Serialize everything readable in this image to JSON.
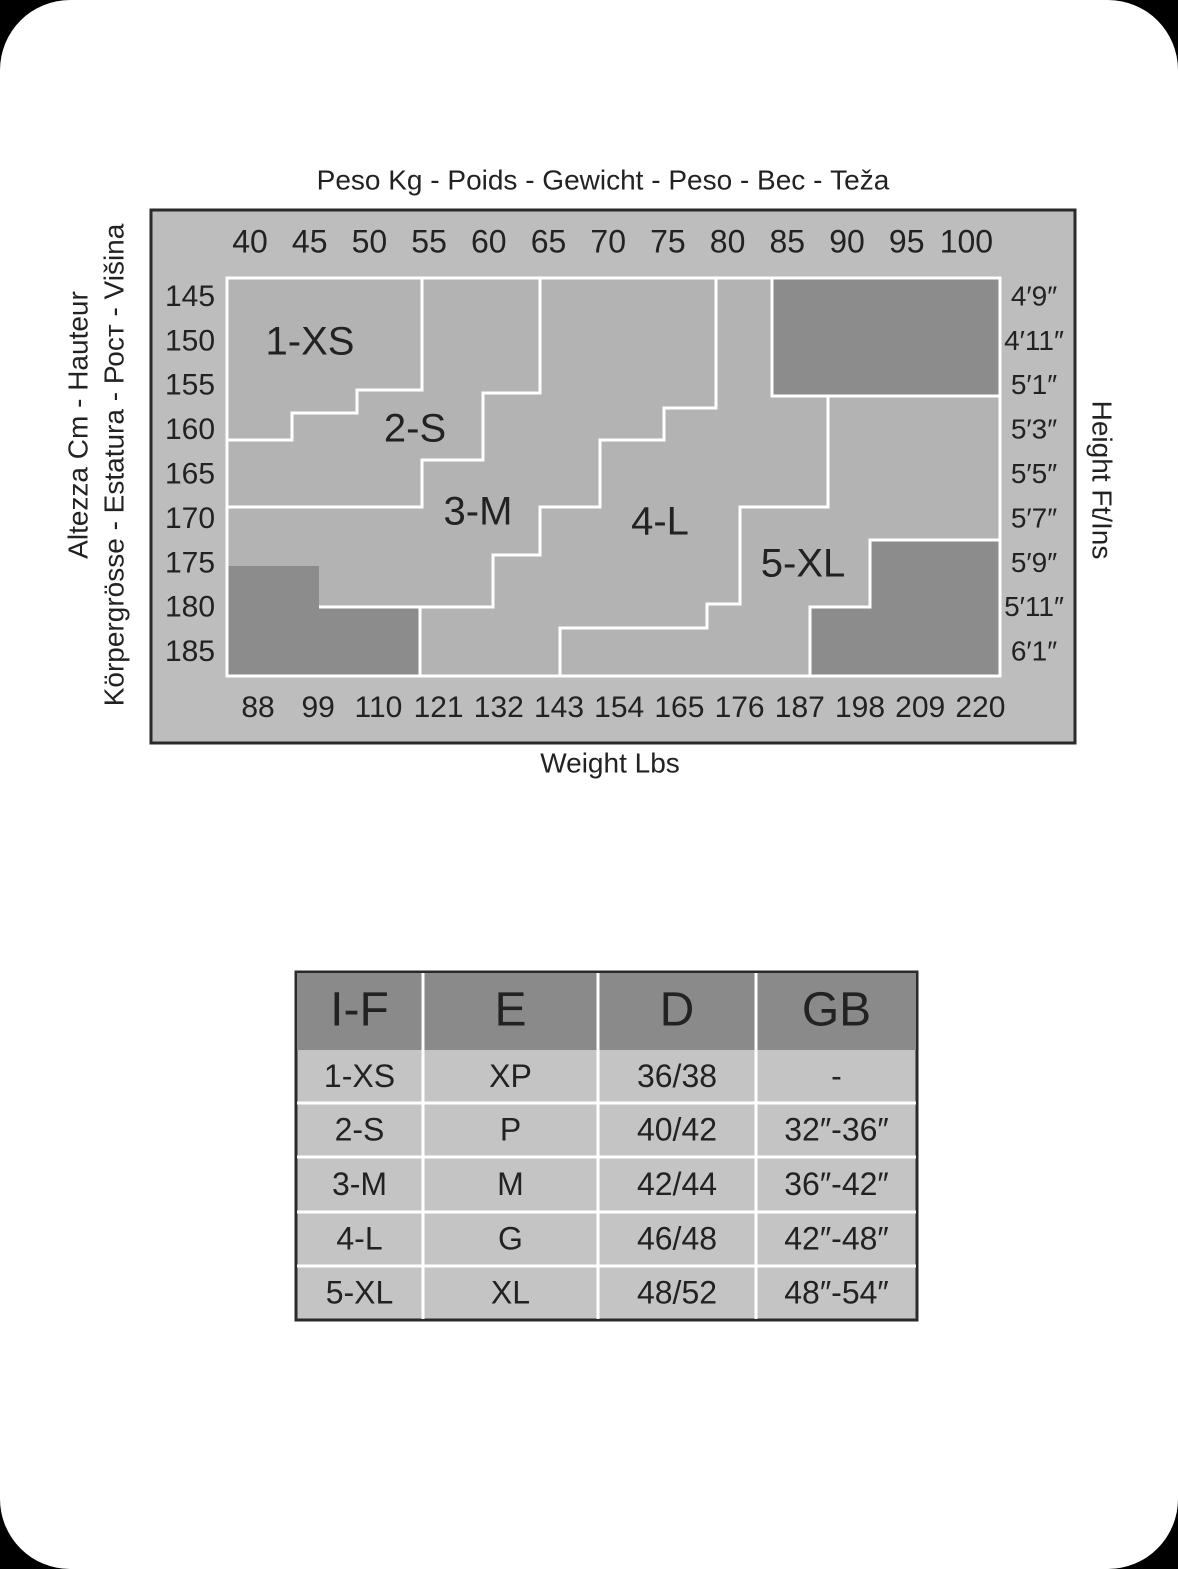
{
  "chart": {
    "title_top": "Peso Kg - Poids - Gewicht - Peso - Вес - Teža",
    "kg_labels": [
      "40",
      "45",
      "50",
      "55",
      "60",
      "65",
      "70",
      "75",
      "80",
      "85",
      "90",
      "95",
      "100"
    ],
    "lbs_labels": [
      "88",
      "99",
      "110",
      "121",
      "132",
      "143",
      "154",
      "165",
      "176",
      "187",
      "198",
      "209",
      "220"
    ],
    "cm_labels": [
      "145",
      "150",
      "155",
      "160",
      "165",
      "170",
      "175",
      "180",
      "185"
    ],
    "ft_labels": [
      "4′9″",
      "4′11″",
      "5′1″",
      "5′3″",
      "5′5″",
      "5′7″",
      "5′9″",
      "5′11″",
      "6′1″"
    ],
    "left_title": [
      "Altezza Cm - Hauteur",
      "Körpergrösse - Estatura - Рост - Višina"
    ],
    "right_title": "Height Ft/Ins",
    "bottom_title": "Weight Lbs",
    "sizes": [
      "1-XS",
      "2-S",
      "3-M",
      "4-L",
      "5-XL"
    ]
  },
  "table": {
    "header": [
      "I-F",
      "E",
      "D",
      "GB"
    ],
    "rows": [
      [
        "1-XS",
        "XP",
        "36/38",
        "-"
      ],
      [
        "2-S",
        "P",
        "40/42",
        "32″-36″"
      ],
      [
        "3-M",
        "M",
        "42/44",
        "36″-42″"
      ],
      [
        "4-L",
        "G",
        "46/48",
        "42″-48″"
      ],
      [
        "5-XL",
        "XL",
        "48/52",
        "48″-54″"
      ]
    ]
  }
}
